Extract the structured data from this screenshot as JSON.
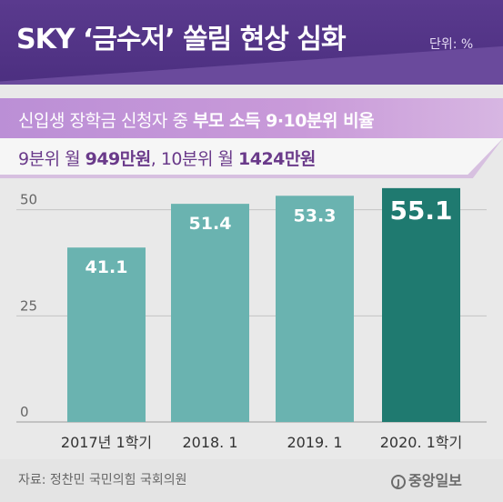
{
  "header": {
    "title": "SKY ‘금수저’ 쏠림 현상 심화",
    "unit": "단위: %"
  },
  "subtitle1": {
    "prefix": "신입생 장학금 신청자 중 ",
    "bold": "부모 소득 9·10분위 비율"
  },
  "subtitle2": {
    "p1": "9분위 월 ",
    "b1": "949만원",
    "p2": ", 10분위 월 ",
    "b2": "1424만원"
  },
  "colors": {
    "bar": "#6ab3b0",
    "highlight": "#1f7a70",
    "header": "#4c2f80"
  },
  "chart_data": {
    "type": "bar",
    "categories": [
      "2017년 1학기",
      "2018. 1",
      "2019. 1",
      "2020. 1학기"
    ],
    "values": [
      41.1,
      51.4,
      53.3,
      55.1
    ],
    "value_labels": [
      "41.1",
      "51.4",
      "53.3",
      "55.1"
    ],
    "ylim": [
      0,
      60
    ],
    "yticks": [
      0,
      25,
      50
    ],
    "ytick_labels": [
      "0",
      "25",
      "50"
    ],
    "highlight_index": 3,
    "grid": true
  },
  "footer": {
    "source": "자료: 정찬민 국민의힘 국회의원",
    "logo_mark": "J",
    "logo_text": "중앙일보"
  }
}
